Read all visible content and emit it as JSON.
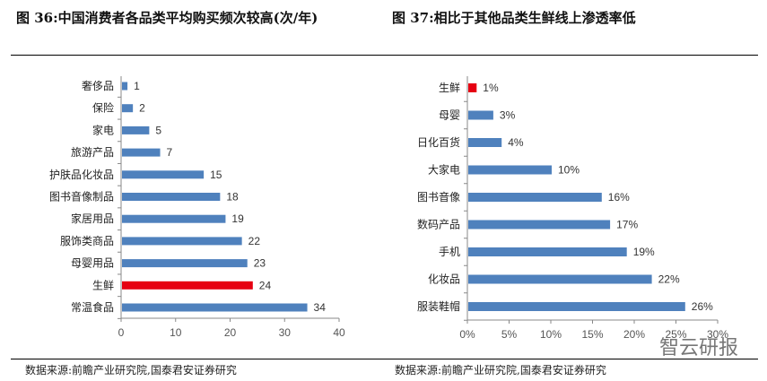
{
  "figure36": {
    "title": "图 36:中国消费者各品类平均购买频次较高(次/年)",
    "source": "数据来源:前瞻产业研究院,国泰君安证券研究"
  },
  "figure37": {
    "title": "图 37:相比于其他品类生鲜线上渗透率低",
    "source": "数据来源:前瞻产业研究院,国泰君安证券研究"
  },
  "watermark": "智云研报",
  "colors": {
    "bar": "#4f81bd",
    "highlight": "#e60012"
  },
  "chart_data": [
    {
      "type": "bar",
      "orientation": "horizontal",
      "categories": [
        "奢侈品",
        "保险",
        "家电",
        "旅游产品",
        "护肤品化妆品",
        "图书音像制品",
        "家居用品",
        "服饰类商品",
        "母婴用品",
        "生鲜",
        "常温食品"
      ],
      "values": [
        1,
        2,
        5,
        7,
        15,
        18,
        19,
        22,
        23,
        24,
        34
      ],
      "highlight": "生鲜",
      "xlim": [
        0,
        40
      ],
      "xticks": [
        "0",
        "10",
        "20",
        "30",
        "40"
      ],
      "grid": false
    },
    {
      "type": "bar",
      "orientation": "horizontal",
      "categories": [
        "生鲜",
        "母婴",
        "日化百货",
        "大家电",
        "图书音像",
        "数码产品",
        "手机",
        "化妆品",
        "服装鞋帽"
      ],
      "values": [
        1,
        3,
        4,
        10,
        16,
        17,
        19,
        22,
        26
      ],
      "labels": [
        "1%",
        "3%",
        "4%",
        "10%",
        "16%",
        "17%",
        "19%",
        "22%",
        "26%"
      ],
      "highlight": "生鲜",
      "xlim": [
        0,
        30
      ],
      "xticks": [
        "0%",
        "5%",
        "10%",
        "15%",
        "20%",
        "25%",
        "30%"
      ],
      "grid": false
    }
  ]
}
